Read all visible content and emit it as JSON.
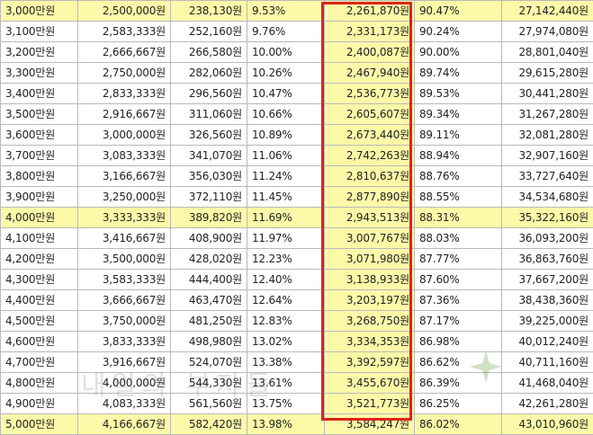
{
  "rows": [
    {
      "c": [
        "3,000만원",
        "2,500,000원",
        "238,130원",
        "9.53%",
        "2,261,870원",
        "90.47%",
        "27,142,440원"
      ],
      "hl": true
    },
    {
      "c": [
        "3,100만원",
        "2,583,333원",
        "252,160원",
        "9.76%",
        "2,331,173원",
        "90.24%",
        "27,974,080원"
      ],
      "hl": false
    },
    {
      "c": [
        "3,200만원",
        "2,666,667원",
        "266,580원",
        "10.00%",
        "2,400,087원",
        "90.00%",
        "28,801,040원"
      ],
      "hl": false
    },
    {
      "c": [
        "3,300만원",
        "2,750,000원",
        "282,060원",
        "10.26%",
        "2,467,940원",
        "89.74%",
        "29,615,280원"
      ],
      "hl": false
    },
    {
      "c": [
        "3,400만원",
        "2,833,333원",
        "296,560원",
        "10.47%",
        "2,536,773원",
        "89.53%",
        "30,441,280원"
      ],
      "hl": false
    },
    {
      "c": [
        "3,500만원",
        "2,916,667원",
        "311,060원",
        "10.66%",
        "2,605,607원",
        "89.34%",
        "31,267,280원"
      ],
      "hl": false
    },
    {
      "c": [
        "3,600만원",
        "3,000,000원",
        "326,560원",
        "10.89%",
        "2,673,440원",
        "89.11%",
        "32,081,280원"
      ],
      "hl": false
    },
    {
      "c": [
        "3,700만원",
        "3,083,333원",
        "341,070원",
        "11.06%",
        "2,742,263원",
        "88.94%",
        "32,907,160원"
      ],
      "hl": false
    },
    {
      "c": [
        "3,800만원",
        "3,166,667원",
        "356,030원",
        "11.24%",
        "2,810,637원",
        "88.76%",
        "33,727,640원"
      ],
      "hl": false
    },
    {
      "c": [
        "3,900만원",
        "3,250,000원",
        "372,110원",
        "11.45%",
        "2,877,890원",
        "88.55%",
        "34,534,680원"
      ],
      "hl": false
    },
    {
      "c": [
        "4,000만원",
        "3,333,333원",
        "389,820원",
        "11.69%",
        "2,943,513원",
        "88.31%",
        "35,322,160원"
      ],
      "hl": true
    },
    {
      "c": [
        "4,100만원",
        "3,416,667원",
        "408,900원",
        "11.97%",
        "3,007,767원",
        "88.03%",
        "36,093,200원"
      ],
      "hl": false
    },
    {
      "c": [
        "4,200만원",
        "3,500,000원",
        "428,020원",
        "12.23%",
        "3,071,980원",
        "87.77%",
        "36,863,760원"
      ],
      "hl": false
    },
    {
      "c": [
        "4,300만원",
        "3,583,333원",
        "444,400원",
        "12.40%",
        "3,138,933원",
        "87.60%",
        "37,667,200원"
      ],
      "hl": false
    },
    {
      "c": [
        "4,400만원",
        "3,666,667원",
        "463,470원",
        "12.64%",
        "3,203,197원",
        "87.36%",
        "38,438,360원"
      ],
      "hl": false
    },
    {
      "c": [
        "4,500만원",
        "3,750,000원",
        "481,250원",
        "12.83%",
        "3,268,750원",
        "87.17%",
        "39,225,000원"
      ],
      "hl": false
    },
    {
      "c": [
        "4,600만원",
        "3,833,333원",
        "498,980원",
        "13.02%",
        "3,334,353원",
        "86.98%",
        "40,012,240원"
      ],
      "hl": false
    },
    {
      "c": [
        "4,700만원",
        "3,916,667원",
        "524,070원",
        "13.38%",
        "3,392,597원",
        "86.62%",
        "40,711,160원"
      ],
      "hl": false
    },
    {
      "c": [
        "4,800만원",
        "4,000,000원",
        "544,330원",
        "13.61%",
        "3,455,670원",
        "86.39%",
        "41,468,040원"
      ],
      "hl": false
    },
    {
      "c": [
        "4,900만원",
        "4,083,333원",
        "561,560원",
        "13.75%",
        "3,521,773원",
        "86.25%",
        "42,261,280원"
      ],
      "hl": false
    },
    {
      "c": [
        "5,000만원",
        "4,166,667원",
        "582,420원",
        "13.98%",
        "3,584,247원",
        "86.02%",
        "43,010,960원"
      ],
      "hl": true
    }
  ],
  "highlight_color": "#fdf9a9",
  "box_color": "#d9251b",
  "watermark_text": "내일의 부자들"
}
